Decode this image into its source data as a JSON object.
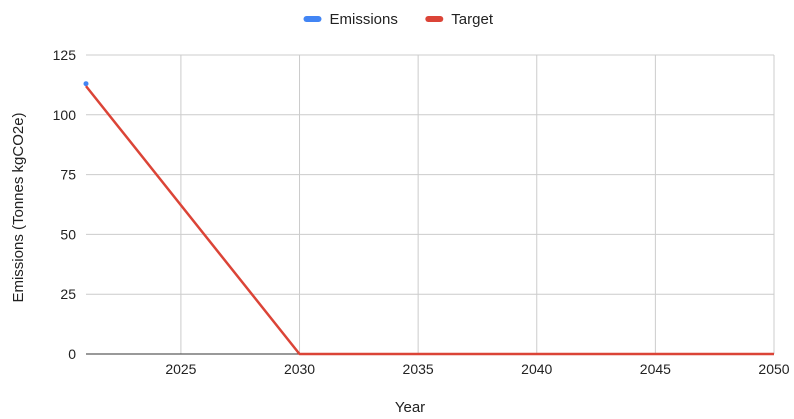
{
  "chart_data": {
    "type": "line",
    "title": "",
    "xlabel": "Year",
    "ylabel": "Emissions (Tonnes kgCO2e)",
    "xlim": [
      2021,
      2050
    ],
    "ylim": [
      0,
      125
    ],
    "x_ticks": [
      2025,
      2030,
      2035,
      2040,
      2045,
      2050
    ],
    "y_ticks": [
      0,
      25,
      50,
      75,
      100,
      125
    ],
    "grid": true,
    "legend_position": "top",
    "series": [
      {
        "name": "Emissions",
        "color": "#4285f4",
        "points": [
          [
            2021,
            113
          ]
        ]
      },
      {
        "name": "Target",
        "color": "#db4437",
        "points": [
          [
            2021,
            112
          ],
          [
            2030,
            0
          ],
          [
            2050,
            0
          ]
        ]
      }
    ]
  }
}
